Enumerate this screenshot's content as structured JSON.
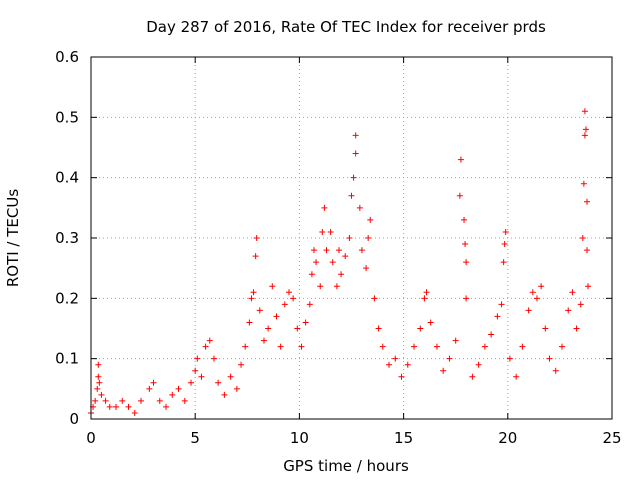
{
  "chart_data": {
    "type": "scatter",
    "title": "Day 287 of 2016, Rate Of TEC Index for receiver prds",
    "xlabel": "GPS time / hours",
    "ylabel": "ROTI / TECUs",
    "xlim": [
      0,
      25
    ],
    "ylim": [
      0,
      0.6
    ],
    "x_ticks": [
      0,
      5,
      10,
      15,
      20,
      25
    ],
    "x_tick_labels": [
      "0",
      "5",
      "10",
      "15",
      "20",
      "25"
    ],
    "y_ticks": [
      0,
      0.1,
      0.2,
      0.3,
      0.4,
      0.5,
      0.6
    ],
    "y_tick_labels": [
      "0",
      "0.1",
      "0.2",
      "0.3",
      "0.4",
      "0.5",
      "0.6"
    ],
    "grid": true,
    "marker": "+",
    "color": "#ff0000",
    "series": [
      {
        "name": "ROTI",
        "points": [
          [
            0.0,
            0.01
          ],
          [
            0.1,
            0.02
          ],
          [
            0.2,
            0.03
          ],
          [
            0.3,
            0.05
          ],
          [
            0.35,
            0.07
          ],
          [
            0.35,
            0.09
          ],
          [
            0.4,
            0.06
          ],
          [
            0.5,
            0.04
          ],
          [
            0.7,
            0.03
          ],
          [
            0.9,
            0.02
          ],
          [
            1.2,
            0.02
          ],
          [
            1.5,
            0.03
          ],
          [
            1.8,
            0.02
          ],
          [
            2.1,
            0.01
          ],
          [
            2.4,
            0.03
          ],
          [
            2.8,
            0.05
          ],
          [
            3.0,
            0.06
          ],
          [
            3.3,
            0.03
          ],
          [
            3.6,
            0.02
          ],
          [
            3.9,
            0.04
          ],
          [
            4.2,
            0.05
          ],
          [
            4.5,
            0.03
          ],
          [
            4.8,
            0.06
          ],
          [
            5.0,
            0.08
          ],
          [
            5.1,
            0.1
          ],
          [
            5.3,
            0.07
          ],
          [
            5.5,
            0.12
          ],
          [
            5.7,
            0.13
          ],
          [
            5.9,
            0.1
          ],
          [
            6.1,
            0.06
          ],
          [
            6.4,
            0.04
          ],
          [
            6.7,
            0.07
          ],
          [
            7.0,
            0.05
          ],
          [
            7.2,
            0.09
          ],
          [
            7.4,
            0.12
          ],
          [
            7.6,
            0.16
          ],
          [
            7.7,
            0.2
          ],
          [
            7.8,
            0.21
          ],
          [
            7.9,
            0.27
          ],
          [
            7.95,
            0.3
          ],
          [
            8.1,
            0.18
          ],
          [
            8.3,
            0.13
          ],
          [
            8.5,
            0.15
          ],
          [
            8.7,
            0.22
          ],
          [
            8.9,
            0.17
          ],
          [
            9.1,
            0.12
          ],
          [
            9.3,
            0.19
          ],
          [
            9.5,
            0.21
          ],
          [
            9.7,
            0.2
          ],
          [
            9.9,
            0.15
          ],
          [
            10.1,
            0.12
          ],
          [
            10.3,
            0.16
          ],
          [
            10.5,
            0.19
          ],
          [
            10.6,
            0.24
          ],
          [
            10.7,
            0.28
          ],
          [
            10.8,
            0.26
          ],
          [
            11.0,
            0.22
          ],
          [
            11.1,
            0.31
          ],
          [
            11.2,
            0.35
          ],
          [
            11.3,
            0.28
          ],
          [
            11.5,
            0.31
          ],
          [
            11.6,
            0.26
          ],
          [
            11.8,
            0.22
          ],
          [
            11.9,
            0.28
          ],
          [
            12.0,
            0.24
          ],
          [
            12.2,
            0.27
          ],
          [
            12.4,
            0.3
          ],
          [
            12.5,
            0.37
          ],
          [
            12.6,
            0.4
          ],
          [
            12.7,
            0.44
          ],
          [
            12.7,
            0.47
          ],
          [
            12.9,
            0.35
          ],
          [
            13.0,
            0.28
          ],
          [
            13.2,
            0.25
          ],
          [
            13.3,
            0.3
          ],
          [
            13.4,
            0.33
          ],
          [
            13.6,
            0.2
          ],
          [
            13.8,
            0.15
          ],
          [
            14.0,
            0.12
          ],
          [
            14.3,
            0.09
          ],
          [
            14.6,
            0.1
          ],
          [
            14.9,
            0.07
          ],
          [
            15.2,
            0.09
          ],
          [
            15.5,
            0.12
          ],
          [
            15.8,
            0.15
          ],
          [
            16.0,
            0.2
          ],
          [
            16.1,
            0.21
          ],
          [
            16.3,
            0.16
          ],
          [
            16.6,
            0.12
          ],
          [
            16.9,
            0.08
          ],
          [
            17.2,
            0.1
          ],
          [
            17.5,
            0.13
          ],
          [
            17.7,
            0.37
          ],
          [
            17.75,
            0.43
          ],
          [
            17.9,
            0.33
          ],
          [
            17.95,
            0.29
          ],
          [
            18.0,
            0.26
          ],
          [
            18.0,
            0.2
          ],
          [
            18.3,
            0.07
          ],
          [
            18.6,
            0.09
          ],
          [
            18.9,
            0.12
          ],
          [
            19.2,
            0.14
          ],
          [
            19.5,
            0.17
          ],
          [
            19.7,
            0.19
          ],
          [
            19.8,
            0.26
          ],
          [
            19.85,
            0.29
          ],
          [
            19.9,
            0.31
          ],
          [
            20.1,
            0.1
          ],
          [
            20.4,
            0.07
          ],
          [
            20.7,
            0.12
          ],
          [
            21.0,
            0.18
          ],
          [
            21.2,
            0.21
          ],
          [
            21.4,
            0.2
          ],
          [
            21.6,
            0.22
          ],
          [
            21.8,
            0.15
          ],
          [
            22.0,
            0.1
          ],
          [
            22.3,
            0.08
          ],
          [
            22.6,
            0.12
          ],
          [
            22.9,
            0.18
          ],
          [
            23.1,
            0.21
          ],
          [
            23.3,
            0.15
          ],
          [
            23.5,
            0.19
          ],
          [
            23.6,
            0.3
          ],
          [
            23.65,
            0.39
          ],
          [
            23.7,
            0.47
          ],
          [
            23.7,
            0.51
          ],
          [
            23.75,
            0.48
          ],
          [
            23.8,
            0.36
          ],
          [
            23.8,
            0.28
          ],
          [
            23.85,
            0.22
          ]
        ]
      }
    ]
  }
}
